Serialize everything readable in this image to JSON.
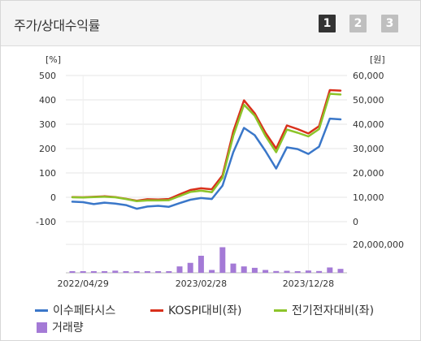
{
  "header": {
    "title": "주가/상대수익률",
    "pages": [
      "1",
      "2",
      "3"
    ],
    "active_page": 0
  },
  "chart_data": {
    "type": "line",
    "left_axis_unit": "[%]",
    "right_axis_unit": "[원]",
    "left_ticks": [
      "500",
      "400",
      "300",
      "200",
      "100",
      "0",
      "-100"
    ],
    "right_ticks": [
      "60,000",
      "50,000",
      "40,000",
      "30,000",
      "20,000",
      "10,000",
      "0"
    ],
    "volume_ticks": [
      "20,000,000"
    ],
    "x_tick_labels": [
      "2022/04/29",
      "2023/02/28",
      "2023/12/28"
    ],
    "ylim_left": [
      -100,
      500
    ],
    "ylim_right": [
      0,
      60000
    ],
    "volume_max": 40000000,
    "grid": true,
    "legend_position": "bottom",
    "series": [
      {
        "name": "이수페타시스",
        "color": "#3a77c9",
        "axis": "left",
        "values": [
          -18,
          -20,
          -28,
          -22,
          -26,
          -32,
          -47,
          -38,
          -35,
          -39,
          -24,
          -10,
          -3,
          -7,
          48,
          185,
          285,
          255,
          190,
          118,
          205,
          198,
          178,
          208,
          323,
          320
        ]
      },
      {
        "name": "KOSPI대비(좌)",
        "color": "#d9301b",
        "axis": "left",
        "values": [
          1,
          0,
          2,
          4,
          1,
          -6,
          -14,
          -8,
          -9,
          -7,
          12,
          30,
          37,
          33,
          90,
          270,
          398,
          345,
          265,
          200,
          295,
          280,
          262,
          292,
          440,
          438
        ]
      },
      {
        "name": "전기전자대비(좌)",
        "color": "#8cc42a",
        "axis": "left",
        "values": [
          0,
          -1,
          1,
          2,
          0,
          -7,
          -16,
          -13,
          -13,
          -12,
          5,
          22,
          27,
          21,
          80,
          252,
          380,
          335,
          252,
          185,
          278,
          265,
          250,
          280,
          425,
          422
        ]
      }
    ],
    "volume": {
      "name": "거래량",
      "color": "#a47ad6",
      "values": [
        1600000,
        1700000,
        1800000,
        1600000,
        3000000,
        1500000,
        1800000,
        600000,
        1200000,
        1400000,
        9000000,
        14000000,
        24000000,
        4000000,
        36000000,
        13000000,
        9000000,
        7000000,
        4000000,
        2500000,
        2800000,
        2000000,
        3200000,
        2500000,
        7500000,
        5500000
      ]
    }
  }
}
